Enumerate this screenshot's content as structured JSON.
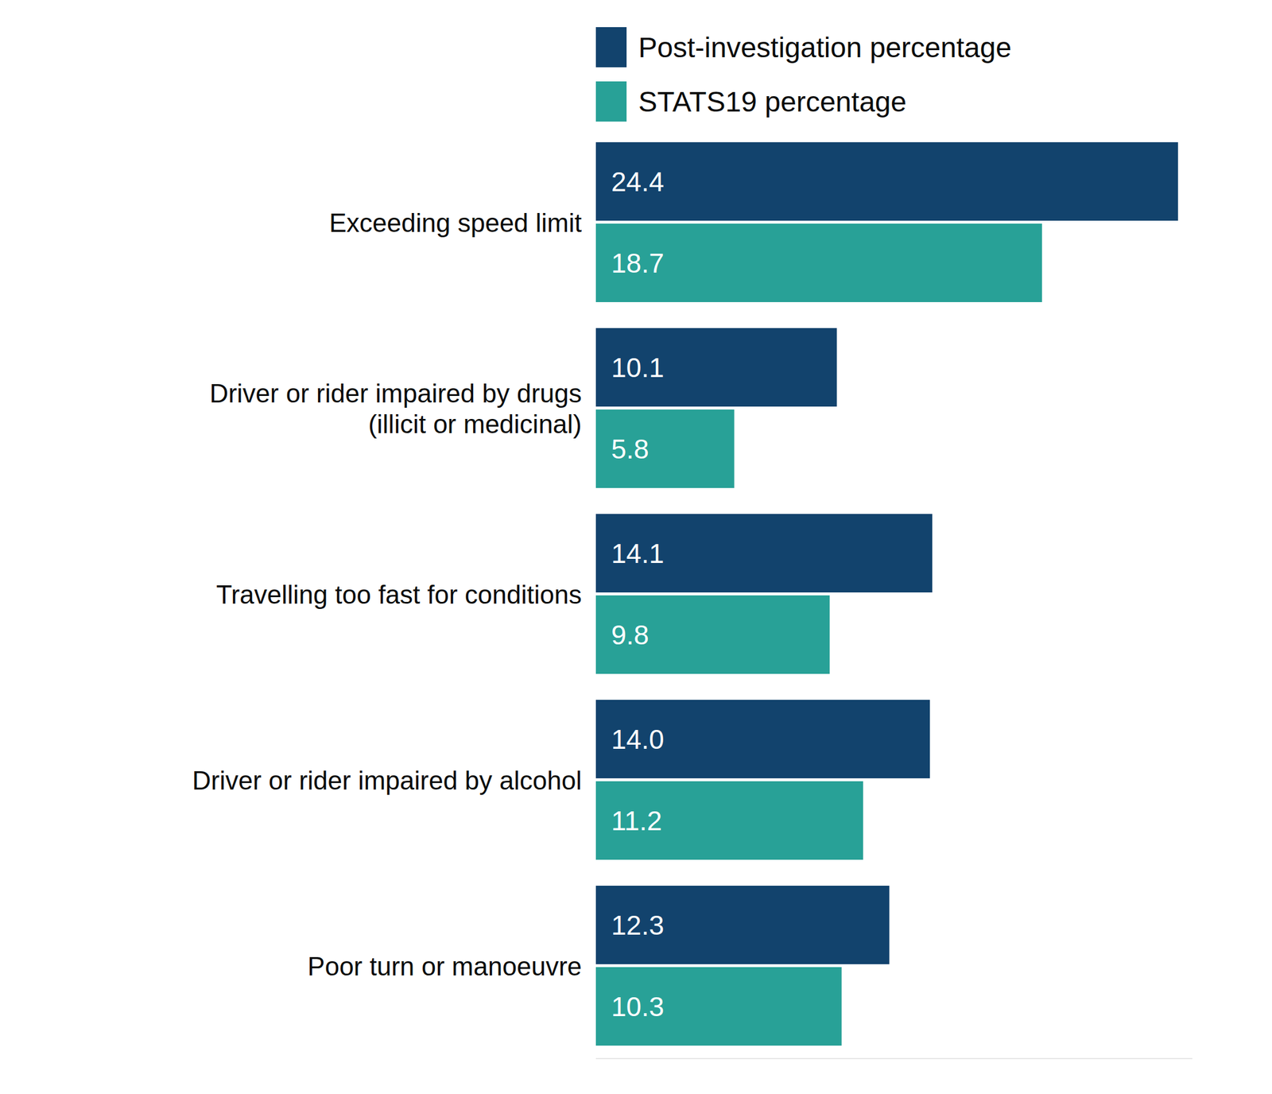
{
  "chart_data": {
    "type": "bar",
    "orientation": "horizontal",
    "categories": [
      "Exceeding speed limit",
      "Driver or rider impaired by drugs (illicit or medicinal)",
      "Travelling too fast for conditions",
      "Driver or rider impaired by alcohol",
      "Poor turn or manoeuvre"
    ],
    "series": [
      {
        "name": "Post-investigation percentage",
        "color": "#12436D",
        "values": [
          24.4,
          10.1,
          14.1,
          14.0,
          12.3
        ],
        "value_labels": [
          "24.4",
          "10.1",
          "14.1",
          "14.0",
          "12.3"
        ]
      },
      {
        "name": "STATS19 percentage",
        "color": "#28A197",
        "values": [
          18.7,
          5.8,
          9.8,
          11.2,
          10.3
        ],
        "value_labels": [
          "18.7",
          "5.8",
          "9.8",
          "11.2",
          "10.3"
        ]
      }
    ],
    "xlim": [
      0,
      25
    ],
    "data_labels": true,
    "tick_labels": "y",
    "grid": false,
    "legend": "top"
  }
}
